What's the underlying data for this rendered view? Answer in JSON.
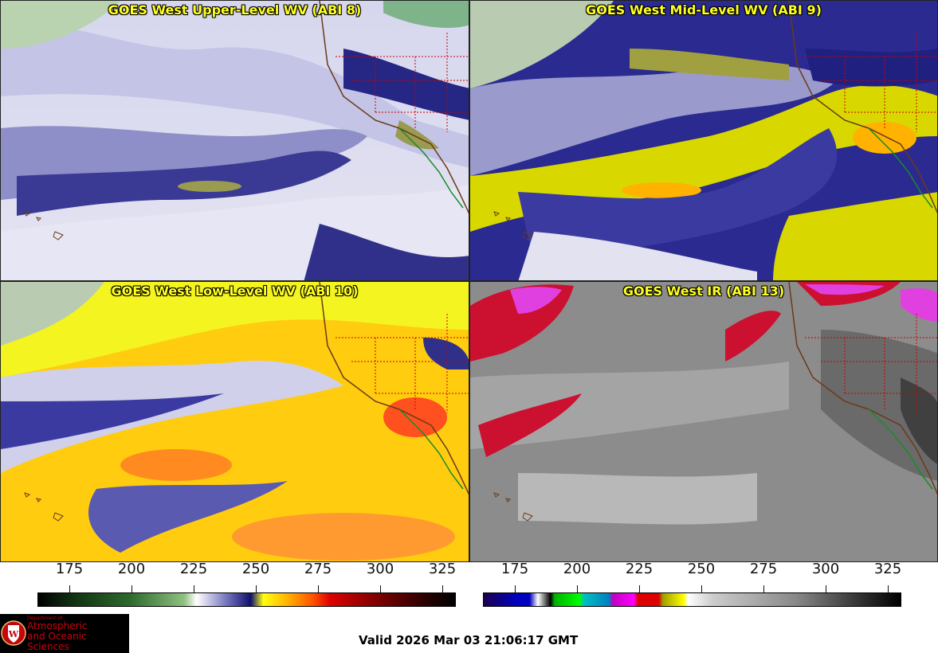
{
  "panels": [
    {
      "title": "GOES West Upper-Level WV (ABI 8)",
      "palette": "wv"
    },
    {
      "title": "GOES West Mid-Level WV (ABI 9)",
      "palette": "wv"
    },
    {
      "title": "GOES West Low-Level WV (ABI 10)",
      "palette": "wv"
    },
    {
      "title": "GOES West IR (ABI 13)",
      "palette": "ir"
    }
  ],
  "colorbars": {
    "wv": {
      "ticks": [
        "175",
        "200",
        "225",
        "250",
        "275",
        "300",
        "325"
      ]
    },
    "ir": {
      "ticks": [
        "175",
        "200",
        "225",
        "250",
        "275",
        "300",
        "325"
      ]
    }
  },
  "logo": {
    "line1": "Department of",
    "line2": "Atmospheric",
    "line3": "and Oceanic Sciences"
  },
  "footer": {
    "valid_text": "Valid 2026 Mar 03 21:06:17 GMT"
  },
  "colors": {
    "title_yellow": "#ffff22",
    "logo_red": "#c5050c",
    "state_lines": "#cc0000",
    "coast": "#6b3a1a",
    "mexico_coast": "#1b8a2a"
  }
}
